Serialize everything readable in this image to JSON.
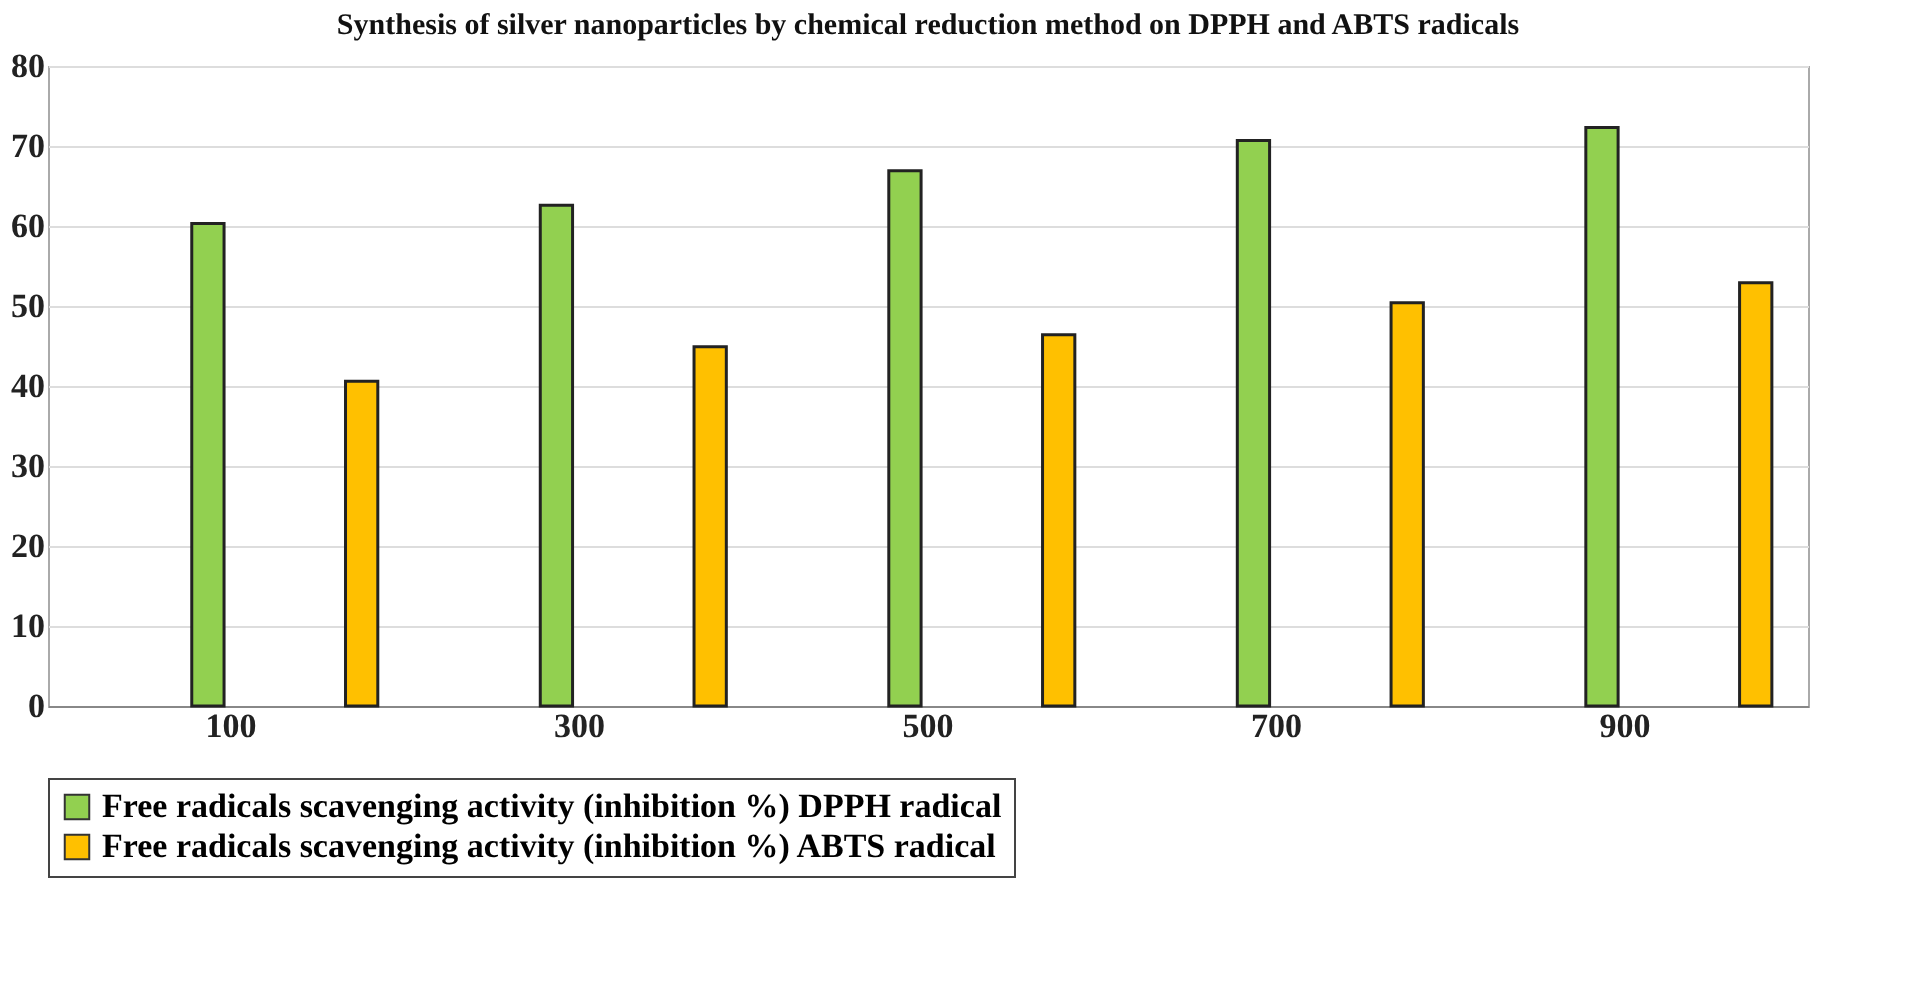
{
  "chart_data": {
    "type": "bar",
    "title": "Synthesis of silver nanoparticles by chemical reduction method on DPPH and ABTS radicals",
    "categories": [
      "100",
      "300",
      "500",
      "700",
      "900"
    ],
    "series": [
      {
        "name": "Free radicals scavenging activity (inhibition %) DPPH radical",
        "color": "#92d050",
        "values": [
          60.3,
          62.6,
          66.9,
          70.7,
          72.3
        ]
      },
      {
        "name": "Free radicals scavenging activity (inhibition %) ABTS radical",
        "color": "#ffc000",
        "values": [
          40.6,
          44.9,
          46.4,
          50.4,
          52.9
        ]
      }
    ],
    "ylim": [
      0,
      80
    ],
    "yticks": [
      0,
      10,
      20,
      30,
      40,
      50,
      60,
      70,
      80
    ],
    "grid": "y",
    "legend": "bottom"
  }
}
